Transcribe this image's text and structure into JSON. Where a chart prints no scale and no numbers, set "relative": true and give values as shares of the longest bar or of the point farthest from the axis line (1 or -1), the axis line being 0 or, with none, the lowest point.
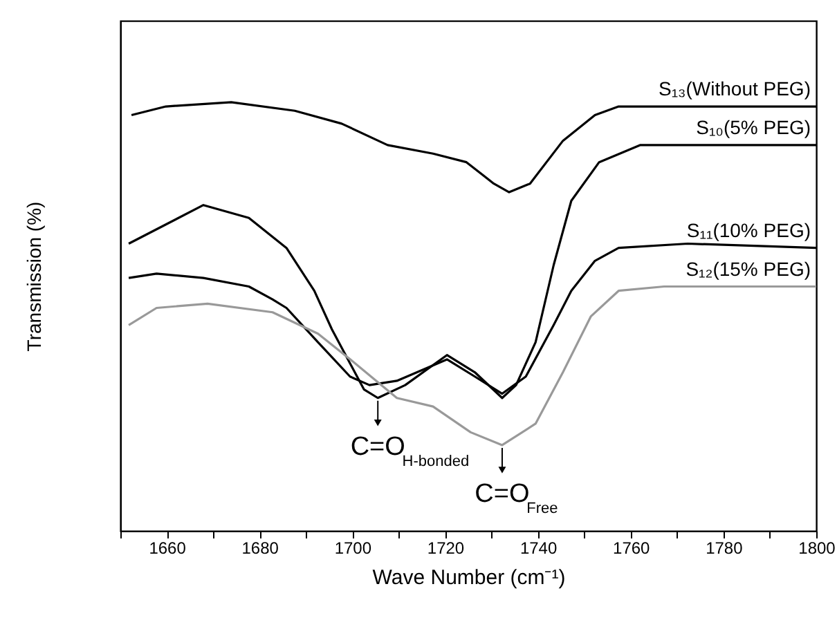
{
  "chart_data": {
    "type": "line",
    "relative": true,
    "xlabel": "Wave Number (cm⁻¹)",
    "ylabel": "Transmission (%)",
    "xlim": [
      1650,
      1800
    ],
    "xticks": [
      {
        "value": 1650,
        "label": null
      },
      1660,
      {
        "value": 1670,
        "label": null
      },
      1680,
      {
        "value": 1690,
        "label": null
      },
      1700,
      {
        "value": 1710,
        "label": null
      },
      1720,
      {
        "value": 1730,
        "label": null
      },
      1740,
      {
        "value": 1750,
        "label": null
      },
      1760,
      {
        "value": 1770,
        "label": null
      },
      1780,
      {
        "value": 1790,
        "label": null
      },
      1800
    ],
    "grid": false,
    "legend": false,
    "marker": "none",
    "line_style": "solid",
    "series": [
      {
        "name": "S₁₃(Without PEG)",
        "color": "#000000",
        "x": [
          1652.4,
          1659.8,
          1673.9,
          1687.6,
          1697.7,
          1707.6,
          1717.4,
          1724.6,
          1730.5,
          1733.8,
          1738.3,
          1745.4,
          1752.3,
          1757.4,
          1767.2,
          1800
        ],
        "values": [
          0.97,
          0.99,
          1.0,
          0.98,
          0.95,
          0.9,
          0.88,
          0.86,
          0.81,
          0.79,
          0.81,
          0.91,
          0.97,
          0.99,
          0.99,
          0.99
        ]
      },
      {
        "name": "S₁₀(5% PEG)",
        "color": "#000000",
        "x": [
          1651.8,
          1667.9,
          1677.7,
          1685.8,
          1691.8,
          1695.6,
          1702.5,
          1705.5,
          1711.4,
          1720.4,
          1726.4,
          1732.3,
          1735.3,
          1739.5,
          1743.4,
          1747.2,
          1753.2,
          1762.1,
          1800
        ],
        "values": [
          0.67,
          0.76,
          0.73,
          0.66,
          0.56,
          0.47,
          0.33,
          0.31,
          0.34,
          0.41,
          0.37,
          0.31,
          0.34,
          0.44,
          0.62,
          0.77,
          0.86,
          0.9,
          0.9
        ]
      },
      {
        "name": "S₁₁(10% PEG)",
        "color": "#000000",
        "x": [
          1651.8,
          1657.8,
          1667.9,
          1677.7,
          1682.8,
          1685.8,
          1692.6,
          1699.5,
          1703.7,
          1709.6,
          1720.4,
          1726.4,
          1732.3,
          1737.4,
          1743.4,
          1747.2,
          1752.3,
          1757.4,
          1772.3,
          1800
        ],
        "values": [
          0.59,
          0.6,
          0.59,
          0.57,
          0.54,
          0.52,
          0.44,
          0.36,
          0.34,
          0.35,
          0.4,
          0.36,
          0.32,
          0.36,
          0.48,
          0.56,
          0.63,
          0.66,
          0.67,
          0.66
        ]
      },
      {
        "name": "S₁₂(15% PEG)",
        "color": "#999999",
        "x": [
          1651.8,
          1657.8,
          1668.8,
          1682.8,
          1692.6,
          1700.7,
          1709.6,
          1717.4,
          1725.5,
          1732.3,
          1739.5,
          1745.4,
          1751.4,
          1757.4,
          1767.2,
          1800
        ],
        "values": [
          0.48,
          0.52,
          0.53,
          0.51,
          0.46,
          0.39,
          0.31,
          0.29,
          0.23,
          0.2,
          0.25,
          0.37,
          0.5,
          0.56,
          0.57,
          0.57
        ]
      }
    ],
    "annotations": [
      {
        "text": "C=O$_{H-bonded}$",
        "x": 1705.5,
        "y": 0.31
      },
      {
        "text": "C=O$_{Free}$",
        "x": 1732.3,
        "y": 0.2
      }
    ]
  }
}
